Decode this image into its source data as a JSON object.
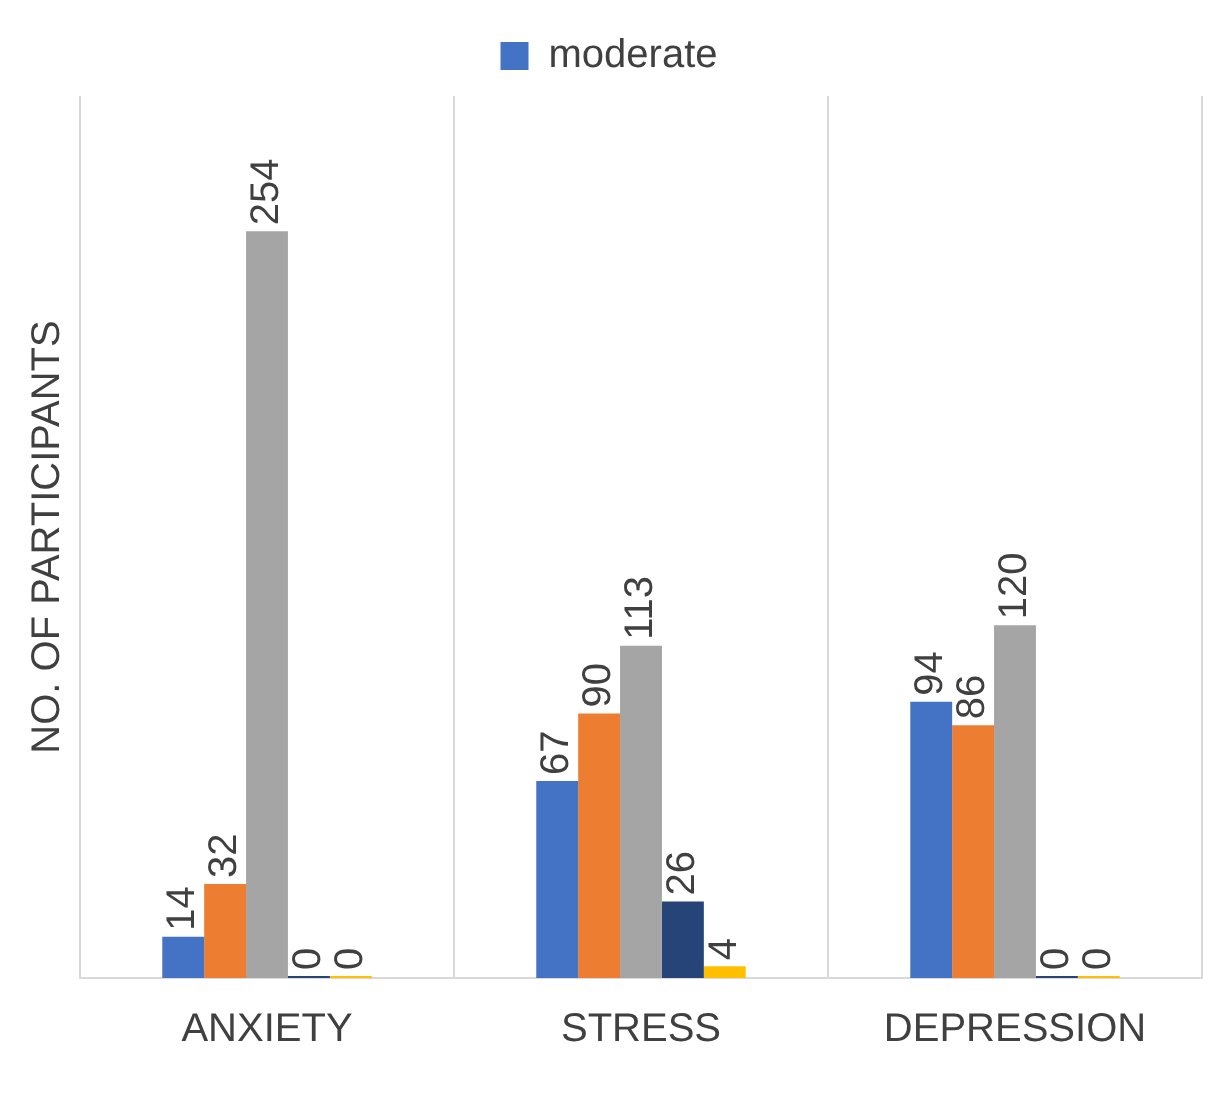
{
  "chart_data": {
    "type": "bar",
    "ylabel": "NO. OF PARTICIPANTS",
    "categories": [
      "ANXIETY",
      "STRESS",
      "DEPRESSION"
    ],
    "series": [
      {
        "name": "moderate",
        "color": "#4472c4",
        "values": [
          14,
          67,
          94
        ]
      },
      {
        "color": "#ed7d31",
        "values": [
          32,
          90,
          86
        ]
      },
      {
        "color": "#a5a5a5",
        "values": [
          254,
          113,
          120
        ]
      },
      {
        "color": "#264478",
        "values": [
          0,
          26,
          0
        ]
      },
      {
        "color": "#ffc000",
        "values": [
          0,
          4,
          0
        ]
      }
    ],
    "data_labels": true,
    "grid": "x",
    "legend": "top"
  }
}
